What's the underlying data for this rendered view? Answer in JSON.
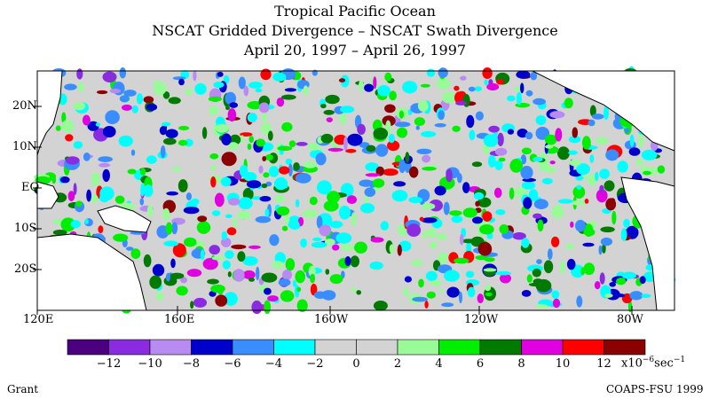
{
  "title": {
    "line1": "Tropical Pacific Ocean",
    "line2": "NSCAT Gridded Divergence – NSCAT Swath Divergence",
    "line3": "April 20, 1997 – April 26, 1997"
  },
  "axes": {
    "lat_labels": [
      "20N",
      "10N",
      "EQ",
      "10S",
      "20S"
    ],
    "lon_labels": [
      "120E",
      "160E",
      "160W",
      "120W",
      "80W"
    ]
  },
  "colorbar": {
    "colors": [
      "#4b0082",
      "#8a2be2",
      "#b98af2",
      "#0000cd",
      "#3a8dff",
      "#00ffff",
      "#d3d3d3",
      "#d3d3d3",
      "#98fb98",
      "#00ee00",
      "#007a00",
      "#e000e0",
      "#ff0000",
      "#8b0000"
    ],
    "tick_labels": [
      "−12",
      "−10",
      "−8",
      "−6",
      "−4",
      "−2",
      "0",
      "2",
      "4",
      "6",
      "8",
      "10",
      "12"
    ],
    "unit_prefix": "x10",
    "unit_exp": "−6",
    "unit_suffix": "sec",
    "unit_suffix_exp": "−1"
  },
  "footer": {
    "left": "Grant",
    "right": "COAPS-FSU 1999"
  },
  "colors": {
    "frame": "#000000",
    "background_field": "#d3d3d3"
  }
}
